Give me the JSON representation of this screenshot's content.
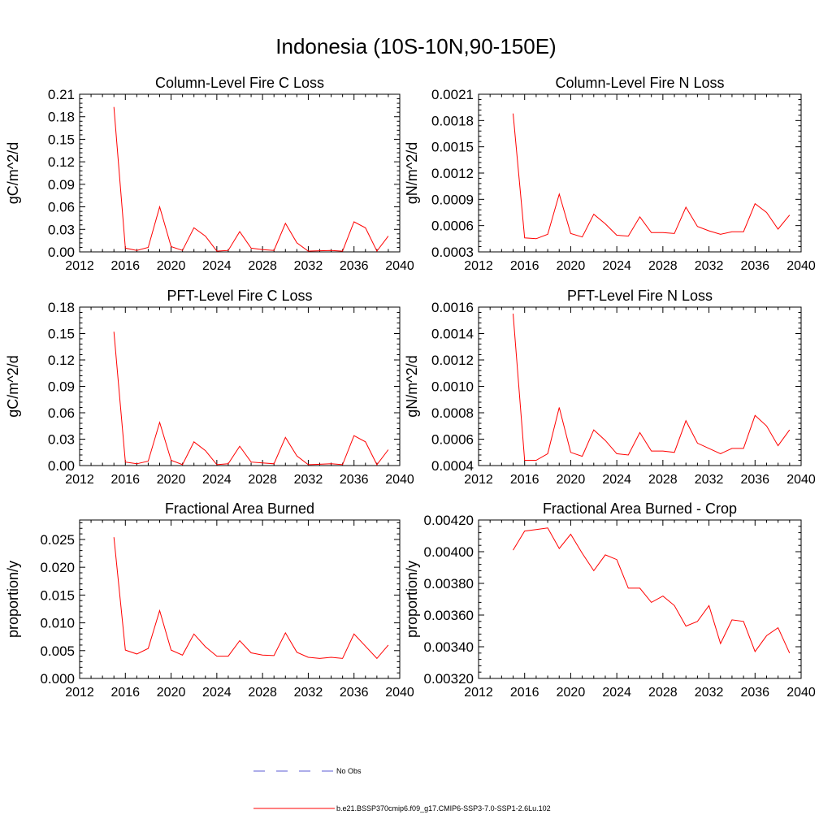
{
  "figure": {
    "title": "Indonesia (10S-10N,90-150E)",
    "series_color": "#ff0000",
    "legend": {
      "obs_label": "No Obs",
      "model_label": "b.e21.BSSP370cmip6.f09_g17.CMIP6-SSP3-7.0-SSP1-2.6Lu.102"
    }
  },
  "chart_data": [
    {
      "type": "line",
      "title": "Column-Level Fire C Loss",
      "xlabel": "",
      "ylabel": "gC/m^2/d",
      "xlim": [
        2012,
        2040
      ],
      "xticks": [
        2012,
        2016,
        2020,
        2024,
        2028,
        2032,
        2036,
        2040
      ],
      "ylim": [
        0,
        0.21
      ],
      "yticks": [
        "0.00",
        "0.03",
        "0.06",
        "0.09",
        "0.12",
        "0.15",
        "0.18",
        "0.21"
      ],
      "x": [
        2015,
        2016,
        2017,
        2018,
        2019,
        2020,
        2021,
        2022,
        2023,
        2024,
        2025,
        2026,
        2027,
        2028,
        2029,
        2030,
        2031,
        2032,
        2033,
        2034,
        2035,
        2036,
        2037,
        2038,
        2039
      ],
      "values": [
        0.193,
        0.005,
        0.002,
        0.006,
        0.06,
        0.007,
        0.002,
        0.032,
        0.021,
        0.001,
        0.002,
        0.027,
        0.005,
        0.003,
        0.002,
        0.038,
        0.012,
        0.001,
        0.0015,
        0.002,
        0.001,
        0.04,
        0.032,
        0.001,
        0.021
      ]
    },
    {
      "type": "line",
      "title": "Column-Level Fire N Loss",
      "xlabel": "",
      "ylabel": "gN/m^2/d",
      "xlim": [
        2012,
        2040
      ],
      "xticks": [
        2012,
        2016,
        2020,
        2024,
        2028,
        2032,
        2036,
        2040
      ],
      "ylim": [
        0.0003,
        0.0021
      ],
      "yticks": [
        "0.0003",
        "0.0006",
        "0.0009",
        "0.0012",
        "0.0015",
        "0.0018",
        "0.0021"
      ],
      "x": [
        2015,
        2016,
        2017,
        2018,
        2019,
        2020,
        2021,
        2022,
        2023,
        2024,
        2025,
        2026,
        2027,
        2028,
        2029,
        2030,
        2031,
        2032,
        2033,
        2034,
        2035,
        2036,
        2037,
        2038,
        2039
      ],
      "values": [
        0.00188,
        0.00046,
        0.00045,
        0.0005,
        0.00096,
        0.00051,
        0.00047,
        0.00073,
        0.00062,
        0.00049,
        0.00048,
        0.0007,
        0.00052,
        0.00052,
        0.00051,
        0.00081,
        0.00059,
        0.00054,
        0.0005,
        0.00053,
        0.00053,
        0.00085,
        0.00075,
        0.00056,
        0.00072
      ]
    },
    {
      "type": "line",
      "title": "PFT-Level Fire C Loss",
      "xlabel": "",
      "ylabel": "gC/m^2/d",
      "xlim": [
        2012,
        2040
      ],
      "xticks": [
        2012,
        2016,
        2020,
        2024,
        2028,
        2032,
        2036,
        2040
      ],
      "ylim": [
        0,
        0.18
      ],
      "yticks": [
        "0.00",
        "0.03",
        "0.06",
        "0.09",
        "0.12",
        "0.15",
        "0.18"
      ],
      "x": [
        2015,
        2016,
        2017,
        2018,
        2019,
        2020,
        2021,
        2022,
        2023,
        2024,
        2025,
        2026,
        2027,
        2028,
        2029,
        2030,
        2031,
        2032,
        2033,
        2034,
        2035,
        2036,
        2037,
        2038,
        2039
      ],
      "values": [
        0.152,
        0.004,
        0.002,
        0.005,
        0.049,
        0.006,
        0.001,
        0.027,
        0.017,
        0.001,
        0.002,
        0.022,
        0.004,
        0.003,
        0.002,
        0.032,
        0.011,
        0.001,
        0.0015,
        0.002,
        0.001,
        0.034,
        0.027,
        0.001,
        0.018
      ]
    },
    {
      "type": "line",
      "title": "PFT-Level Fire N Loss",
      "xlabel": "",
      "ylabel": "gN/m^2/d",
      "xlim": [
        2012,
        2040
      ],
      "xticks": [
        2012,
        2016,
        2020,
        2024,
        2028,
        2032,
        2036,
        2040
      ],
      "ylim": [
        0.0004,
        0.0016
      ],
      "yticks": [
        "0.0004",
        "0.0006",
        "0.0008",
        "0.0010",
        "0.0012",
        "0.0014",
        "0.0016"
      ],
      "x": [
        2015,
        2016,
        2017,
        2018,
        2019,
        2020,
        2021,
        2022,
        2023,
        2024,
        2025,
        2026,
        2027,
        2028,
        2029,
        2030,
        2031,
        2032,
        2033,
        2034,
        2035,
        2036,
        2037,
        2038,
        2039
      ],
      "values": [
        0.00155,
        0.00044,
        0.00044,
        0.00049,
        0.00084,
        0.0005,
        0.00047,
        0.00067,
        0.00059,
        0.00049,
        0.00048,
        0.00065,
        0.00051,
        0.00051,
        0.0005,
        0.00074,
        0.00057,
        0.00053,
        0.00049,
        0.00053,
        0.00053,
        0.00078,
        0.0007,
        0.00055,
        0.00067
      ]
    },
    {
      "type": "line",
      "title": "Fractional Area Burned",
      "xlabel": "",
      "ylabel": "proportion/y",
      "xlim": [
        2012,
        2040
      ],
      "xticks": [
        2012,
        2016,
        2020,
        2024,
        2028,
        2032,
        2036,
        2040
      ],
      "ylim": [
        0,
        0.0285
      ],
      "yticks": [
        "0.000",
        "0.005",
        "0.010",
        "0.015",
        "0.020",
        "0.025"
      ],
      "x": [
        2015,
        2016,
        2017,
        2018,
        2019,
        2020,
        2021,
        2022,
        2023,
        2024,
        2025,
        2026,
        2027,
        2028,
        2029,
        2030,
        2031,
        2032,
        2033,
        2034,
        2035,
        2036,
        2037,
        2038,
        2039
      ],
      "values": [
        0.0254,
        0.0051,
        0.0044,
        0.0054,
        0.0122,
        0.0051,
        0.0042,
        0.008,
        0.0057,
        0.004,
        0.004,
        0.0068,
        0.0046,
        0.0042,
        0.0041,
        0.0082,
        0.0047,
        0.0038,
        0.0036,
        0.0038,
        0.0036,
        0.008,
        0.0058,
        0.0036,
        0.006
      ]
    },
    {
      "type": "line",
      "title": "Fractional Area Burned - Crop",
      "xlabel": "",
      "ylabel": "proportion/y",
      "xlim": [
        2012,
        2040
      ],
      "xticks": [
        2012,
        2016,
        2020,
        2024,
        2028,
        2032,
        2036,
        2040
      ],
      "ylim": [
        0.0032,
        0.0042
      ],
      "yticks": [
        "0.00320",
        "0.00340",
        "0.00360",
        "0.00380",
        "0.00400",
        "0.00420"
      ],
      "x": [
        2015,
        2016,
        2017,
        2018,
        2019,
        2020,
        2021,
        2022,
        2023,
        2024,
        2025,
        2026,
        2027,
        2028,
        2029,
        2030,
        2031,
        2032,
        2033,
        2034,
        2035,
        2036,
        2037,
        2038,
        2039
      ],
      "values": [
        0.00401,
        0.00413,
        0.00414,
        0.00415,
        0.00402,
        0.00411,
        0.00399,
        0.00388,
        0.00398,
        0.00395,
        0.00377,
        0.00377,
        0.00368,
        0.00372,
        0.00366,
        0.00353,
        0.00356,
        0.00366,
        0.00342,
        0.00357,
        0.00356,
        0.00337,
        0.00347,
        0.00352,
        0.00336
      ]
    }
  ]
}
